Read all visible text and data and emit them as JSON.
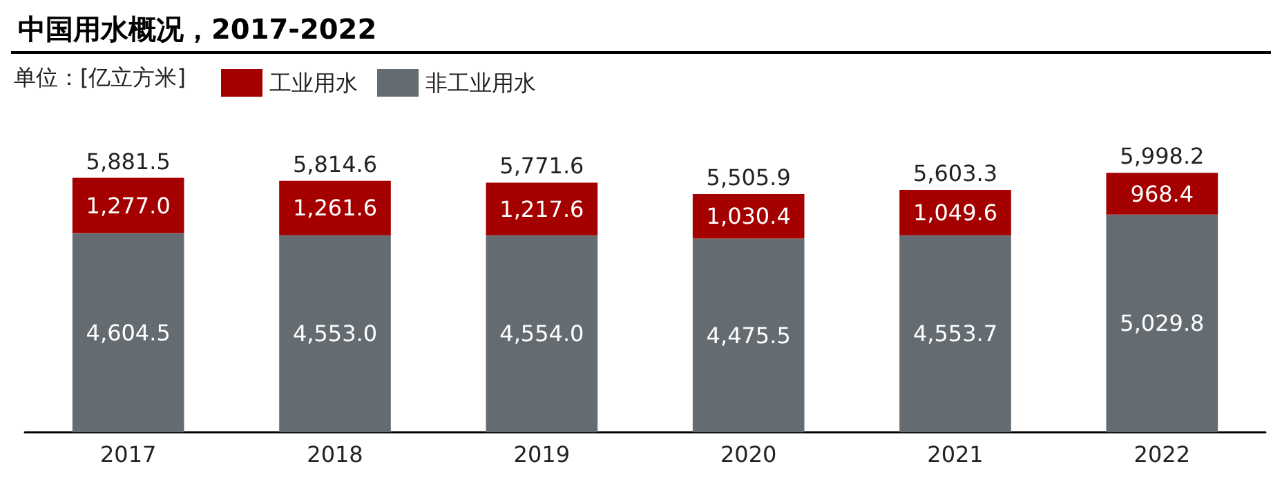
{
  "chart_data": {
    "type": "bar",
    "title": "中国用水概况，2017-2022",
    "legend_title": "单位：[亿立方米]",
    "categories": [
      "2017",
      "2018",
      "2019",
      "2020",
      "2021",
      "2022"
    ],
    "stacked": true,
    "legend": "top left",
    "series": [
      {
        "name": "非工业用水",
        "color": "#656c71",
        "values": [
          4604.5,
          4553.0,
          4554.0,
          4475.5,
          4553.7,
          5029.8
        ],
        "value_labels": [
          "4,604.5",
          "4,553.0",
          "4,554.0",
          "4,475.5",
          "4,553.7",
          "5,029.8"
        ]
      },
      {
        "name": "工业用水",
        "color": "#a50000",
        "values": [
          1277.0,
          1261.6,
          1217.6,
          1030.4,
          1049.6,
          968.4
        ],
        "value_labels": [
          "1,277.0",
          "1,261.6",
          "1,217.6",
          "1,030.4",
          "1,049.6",
          "968.4"
        ]
      }
    ],
    "totals": [
      "5,881.5",
      "5,814.6",
      "5,771.6",
      "5,505.9",
      "5,603.3",
      "5,998.2"
    ]
  }
}
